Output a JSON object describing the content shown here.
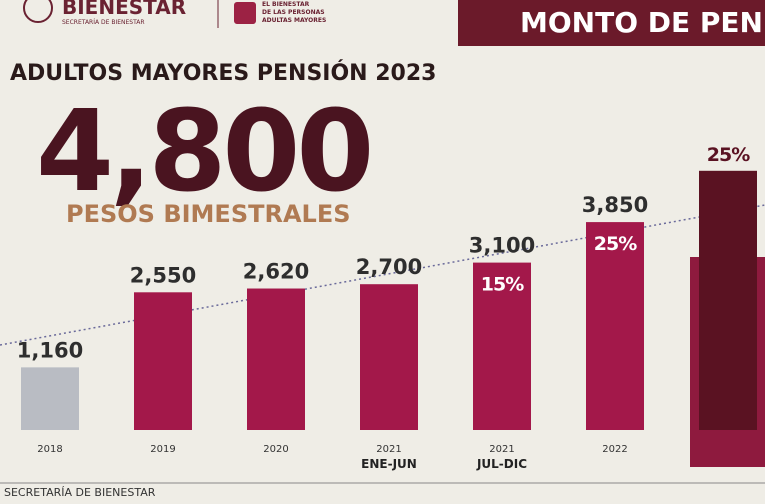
{
  "header": {
    "logo": "BIENESTAR",
    "logo_sub": "SECRETARÍA DE BIENESTAR",
    "program": [
      "EL BIENESTAR",
      "DE LAS PERSONAS",
      "ADULTAS MAYORES"
    ],
    "banner": "MONTO DE PENS"
  },
  "footer": "SECRETARÍA DE BIENESTAR",
  "chart_data": {
    "type": "bar",
    "title": "ADULTOS MAYORES PENSIÓN 2023",
    "headline": "4,800",
    "subtitle": "PESOS BIMESTRALES",
    "categories": [
      "2018",
      "2019",
      "2020",
      "2021",
      "2021",
      "2022",
      null
    ],
    "subcategories": [
      null,
      null,
      null,
      "ENE-JUN",
      "JUL-DIC",
      null,
      null
    ],
    "values": [
      1160,
      2550,
      2620,
      2700,
      3100,
      3850,
      4800
    ],
    "value_labels": [
      "1,160",
      "2,550",
      "2,620",
      "2,700",
      "3,100",
      "3,850",
      null
    ],
    "pct_labels": [
      null,
      null,
      null,
      null,
      "15%",
      "25%",
      "25%"
    ],
    "colors": [
      "#b9bcc3",
      "#a3184a",
      "#a3184a",
      "#a3184a",
      "#a3184a",
      "#a3184a",
      "#5a1222"
    ]
  }
}
